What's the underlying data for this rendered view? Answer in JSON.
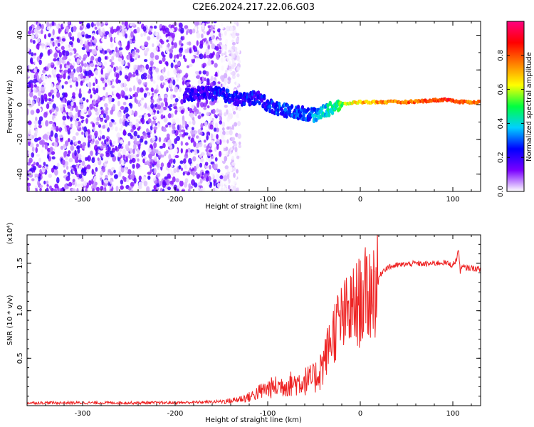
{
  "title": "C2E6.2024.217.22.06.G03",
  "chart_data": [
    {
      "type": "heatmap",
      "xlabel": "Height of straight line (km)",
      "ylabel": "Frequency (Hz)",
      "xlim": [
        -360,
        130
      ],
      "ylim": [
        -50,
        48
      ],
      "x_ticks": [
        -300,
        -200,
        -100,
        0,
        100
      ],
      "y_ticks": [
        -40,
        -20,
        0,
        20,
        40
      ],
      "colorbar": {
        "label": "Normalized spectral amplitude",
        "range": [
          0,
          1
        ],
        "ticks": [
          "0.0",
          "0.2",
          "0.4",
          "0.6",
          "0.8"
        ],
        "tick_values": [
          0.0,
          0.2,
          0.4,
          0.6,
          0.8
        ],
        "colors": [
          "#ffffff",
          "#7a00ff",
          "#0000ff",
          "#00d0ff",
          "#00ff40",
          "#ffff00",
          "#ff8000",
          "#ff0000",
          "#ff0080"
        ]
      },
      "noise_region_x": [
        -360,
        -150
      ],
      "signal_trace": [
        {
          "x": -190,
          "y": 5,
          "amp": 0.25
        },
        {
          "x": -170,
          "y": 7,
          "amp": 0.25
        },
        {
          "x": -150,
          "y": 6,
          "amp": 0.3
        },
        {
          "x": -130,
          "y": 3,
          "amp": 0.3
        },
        {
          "x": -110,
          "y": 4,
          "amp": 0.3
        },
        {
          "x": -100,
          "y": 0,
          "amp": 0.3
        },
        {
          "x": -90,
          "y": -2,
          "amp": 0.35
        },
        {
          "x": -75,
          "y": -4,
          "amp": 0.35
        },
        {
          "x": -60,
          "y": -5,
          "amp": 0.35
        },
        {
          "x": -50,
          "y": -6,
          "amp": 0.4
        },
        {
          "x": -40,
          "y": -4,
          "amp": 0.45
        },
        {
          "x": -30,
          "y": -2,
          "amp": 0.5
        },
        {
          "x": -20,
          "y": 0,
          "amp": 0.6
        },
        {
          "x": -10,
          "y": 1,
          "amp": 0.7
        },
        {
          "x": 0,
          "y": 1.5,
          "amp": 0.75
        },
        {
          "x": 20,
          "y": 1.5,
          "amp": 0.8
        },
        {
          "x": 50,
          "y": 1.5,
          "amp": 0.85
        },
        {
          "x": 80,
          "y": 2.5,
          "amp": 0.9
        },
        {
          "x": 95,
          "y": 3,
          "amp": 0.95
        },
        {
          "x": 105,
          "y": 1.5,
          "amp": 0.85
        },
        {
          "x": 130,
          "y": 1.5,
          "amp": 0.85
        }
      ]
    },
    {
      "type": "line",
      "xlabel": "Height of straight line (km)",
      "ylabel": "SNR (10 * v/v)",
      "y_multiplier": "(x10⁴)",
      "xlim": [
        -360,
        130
      ],
      "ylim": [
        0,
        18000
      ],
      "x_ticks": [
        -300,
        -200,
        -100,
        0,
        100
      ],
      "y_ticks": [
        5000,
        10000,
        15000
      ],
      "y_tick_labels": [
        "0.5",
        "1.0",
        "1.5"
      ],
      "line_color": "#ee2222",
      "series": [
        {
          "x": [
            -360,
            -300,
            -250,
            -200,
            -180,
            -160,
            -140,
            -120,
            -110,
            -100,
            -90,
            -80,
            -70,
            -60,
            -50,
            -45,
            -40,
            -35,
            -30,
            -25,
            -20,
            -15,
            -10,
            -5,
            0,
            5,
            10,
            15,
            20,
            25,
            30,
            40,
            50,
            60,
            70,
            80,
            90,
            100,
            104,
            106,
            108,
            110,
            115,
            120,
            130
          ],
          "y": [
            300,
            300,
            300,
            300,
            350,
            400,
            500,
            900,
            1400,
            1800,
            2000,
            2200,
            2400,
            2600,
            2800,
            3500,
            4500,
            6000,
            7500,
            8500,
            9000,
            9500,
            10000,
            10500,
            11000,
            11500,
            12000,
            12500,
            13500,
            14300,
            14600,
            14800,
            14900,
            15000,
            14900,
            15000,
            15100,
            14800,
            15400,
            16500,
            14200,
            14600,
            14500,
            14500,
            14400
          ]
        }
      ]
    }
  ]
}
